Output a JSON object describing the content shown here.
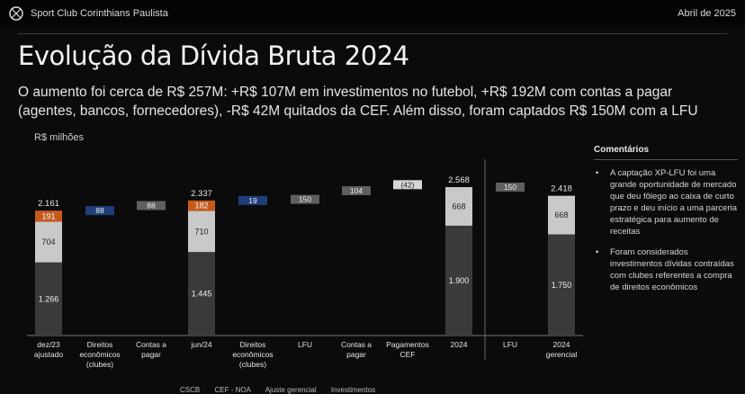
{
  "header": {
    "org_name": "Sport Club Corinthians Paulista",
    "date": "Abril de 2025"
  },
  "title": "Evolução da Dívida Bruta 2024",
  "subtitle": "O aumento foi cerca de R$ 257M: +R$ 107M em investimentos no futebol, +R$ 192M com contas a pagar\n(agentes, bancos, fornecedores), -R$ 42M quitados da CEF. Além disso, foram captados R$ 150M com a LFU",
  "unit_label": "R$ milhões",
  "comments": {
    "heading": "Comentários",
    "items": [
      "A captação XP-LFU foi uma grande oportunidade de mercado que deu fôlego ao caixa de curto prazo e deu início a uma parceria estratégica para aumento de receitas",
      "Foram considerados investimentos dívidas contraídas com clubes referentes a compra de direitos econômicos"
    ]
  },
  "legend": [
    "CSCB",
    "CEF - NOA",
    "Ajuste gerencial",
    "Investimentos"
  ],
  "colors": {
    "base": "#3a3a3a",
    "middle": "#c9c9c9",
    "top": "#c65a1c",
    "delta_blue": "#1f3f7a",
    "delta_gray": "#5f5f5f"
  },
  "chart_data": {
    "type": "bar",
    "subtype": "waterfall",
    "categories": [
      "dez/23 ajustado",
      "Direitos econômicos (clubes)",
      "Contas a pagar",
      "jun/24",
      "Direitos econômicos (clubes)",
      "LFU",
      "Contas a pagar",
      "Pagamentos CEF",
      "2024",
      "LFU",
      "2024 gerencial"
    ],
    "totals": [
      {
        "category": "dez/23 ajustado",
        "total": "2.161",
        "segments": [
          1266,
          704,
          191
        ],
        "segment_labels": [
          "1.266",
          "704",
          "191"
        ]
      },
      {
        "category": "jun/24",
        "total": "2.337",
        "segments": [
          1445,
          710,
          182
        ],
        "segment_labels": [
          "1.445",
          "710",
          "182"
        ]
      },
      {
        "category": "2024",
        "total": "2.568",
        "segments": [
          1900,
          668
        ],
        "segment_labels": [
          "1.900",
          "668"
        ]
      },
      {
        "category": "2024 gerencial",
        "total": "2.418",
        "segments": [
          1750,
          668
        ],
        "segment_labels": [
          "1.750",
          "668"
        ]
      }
    ],
    "deltas": [
      {
        "category": "Direitos econômicos (clubes)",
        "value": 88,
        "label": "88",
        "color": "blue"
      },
      {
        "category": "Contas a pagar",
        "value": 88,
        "label": "88",
        "color": "gray"
      },
      {
        "category": "Direitos econômicos (clubes)",
        "value": 19,
        "label": "19",
        "color": "blue"
      },
      {
        "category": "LFU",
        "value": 150,
        "label": "150",
        "color": "gray"
      },
      {
        "category": "Contas a pagar",
        "value": 104,
        "label": "104",
        "color": "gray"
      },
      {
        "category": "Pagamentos CEF",
        "value": -42,
        "label": "(42)",
        "color": "light"
      },
      {
        "category": "LFU",
        "value": -150,
        "label": "150",
        "color": "gray"
      }
    ],
    "segment_names": [
      "CSCB",
      "CEF - NOA",
      "Ajuste gerencial"
    ],
    "ylim": [
      0,
      2700
    ]
  }
}
